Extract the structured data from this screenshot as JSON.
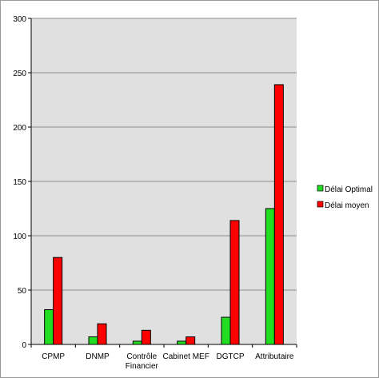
{
  "chart_data": {
    "type": "bar",
    "categories": [
      "CPMP",
      "DNMP",
      "Contrôle Financier",
      "Cabinet MEF",
      "DGTCP",
      "Attributaire"
    ],
    "category_lines": [
      [
        "CPMP"
      ],
      [
        "DNMP"
      ],
      [
        "Contrôle",
        "Financier"
      ],
      [
        "Cabinet MEF"
      ],
      [
        "DGTCP"
      ],
      [
        "Attributaire"
      ]
    ],
    "series": [
      {
        "name": "Délai Optimal",
        "values": [
          32,
          7,
          3,
          3,
          25,
          125
        ],
        "color": "#22dd22"
      },
      {
        "name": "Délai moyen",
        "values": [
          80,
          19,
          13,
          7,
          114,
          239
        ],
        "color": "#ff0000"
      }
    ],
    "ylim": [
      0,
      300
    ],
    "yticks": [
      0,
      50,
      100,
      150,
      200,
      250,
      300
    ],
    "title": "",
    "xlabel": "",
    "ylabel": "",
    "grid": true,
    "legend_position": "right",
    "plot_background": "#e0e0e0",
    "gridline_color": "#8c8c8c"
  }
}
